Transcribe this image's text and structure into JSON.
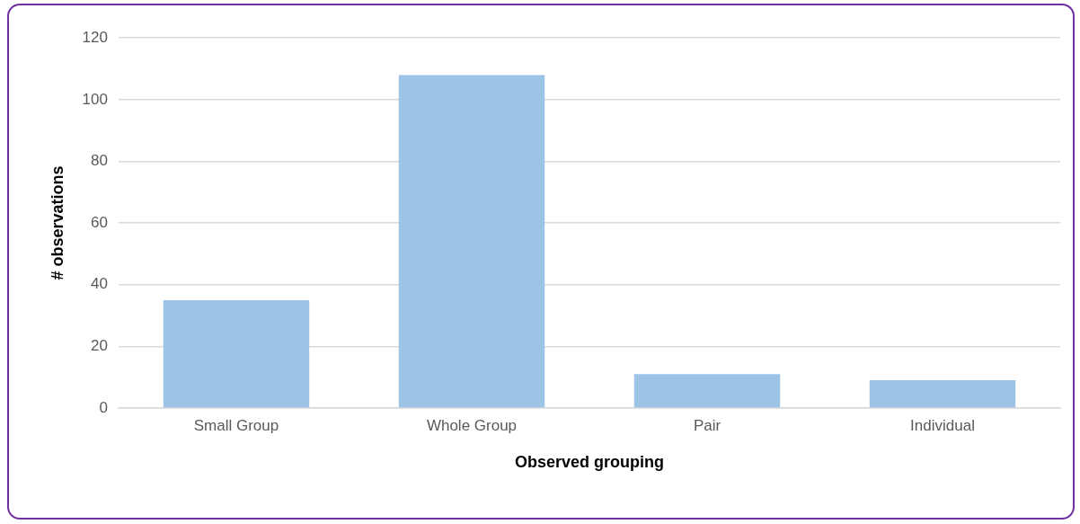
{
  "chart_data": {
    "type": "bar",
    "xlabel": "Observed grouping",
    "ylabel": "# observations",
    "categories": [
      "Small Group",
      "Whole Group",
      "Pair",
      "Individual"
    ],
    "values": [
      35,
      108,
      11,
      9
    ],
    "color": "#9dc3e6",
    "ylim": [
      0,
      120
    ],
    "yticks": [
      0,
      20,
      40,
      60,
      80,
      100,
      120
    ],
    "grid": "y",
    "legend": false
  }
}
